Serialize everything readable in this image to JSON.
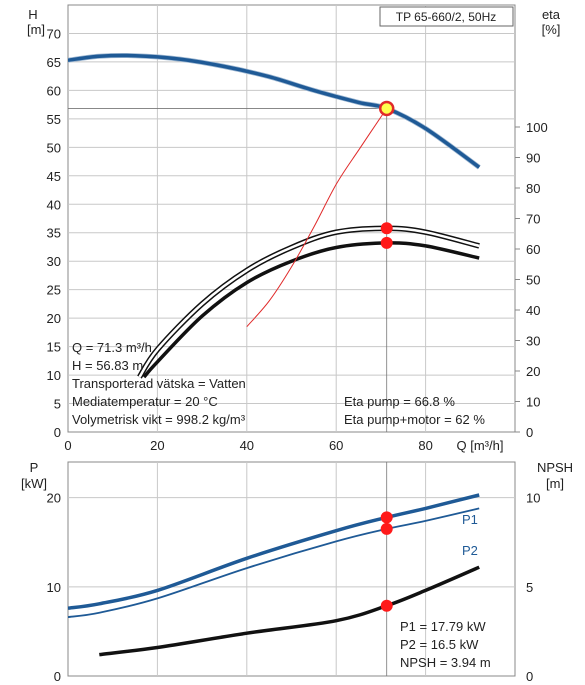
{
  "chart_data": [
    {
      "type": "line",
      "title": "TP 65-660/2, 50Hz",
      "xlabel": "Q [m³/h]",
      "x_ticks": [
        0,
        20,
        40,
        60,
        80
      ],
      "xlim": [
        0,
        100
      ],
      "left_axis": {
        "label_line1": "H",
        "label_line2": "[m]",
        "ylim": [
          0,
          75
        ],
        "ticks": [
          0,
          5,
          10,
          15,
          20,
          25,
          30,
          35,
          40,
          45,
          50,
          55,
          60,
          65,
          70
        ]
      },
      "right_axis": {
        "label_line1": "eta",
        "label_line2": "[%]",
        "ylim": [
          0,
          100
        ],
        "ticks": [
          0,
          10,
          20,
          30,
          40,
          50,
          60,
          70,
          80,
          90,
          100
        ]
      },
      "series": [
        {
          "key": "head",
          "color": "#1f5a96",
          "axis": "left",
          "x": [
            0,
            7,
            15,
            25,
            35,
            45,
            55,
            65,
            71.3,
            80,
            92
          ],
          "y": [
            65.3,
            66,
            66.1,
            65.5,
            64.2,
            62.4,
            60,
            57.9,
            56.83,
            53.3,
            46.5
          ]
        },
        {
          "key": "eta-pump",
          "color": "#111111",
          "axis": "right",
          "x": [
            16,
            20,
            30,
            40,
            50,
            60,
            71.3,
            80,
            92
          ],
          "y": [
            18,
            27,
            42,
            53,
            60.5,
            65.5,
            66.8,
            65.5,
            61
          ]
        },
        {
          "key": "eta-pump-motor",
          "color": "#111111",
          "axis": "right",
          "x": [
            17,
            20,
            30,
            40,
            50,
            60,
            71.3,
            80,
            92
          ],
          "y": [
            18,
            23,
            38,
            49,
            56,
            60.5,
            62,
            61,
            57
          ]
        },
        {
          "key": "system-curve",
          "color": "#e02a2a",
          "axis": "left",
          "x": [
            40,
            45,
            50,
            55,
            60,
            65,
            71.3
          ],
          "y": [
            18.5,
            23,
            29,
            36,
            43.5,
            49.5,
            56.83
          ]
        }
      ],
      "operating_point": {
        "Q": 71.3,
        "H": 56.83,
        "eta_pump": 66.8,
        "eta_pump_motor": 62
      },
      "info_lines": [
        "Q = 71.3 m³/h",
        "H = 56.83 m",
        "Transporterad vätska = Vatten",
        "Mediatemperatur = 20 °C",
        "Volymetrisk vikt = 998.2 kg/m³"
      ],
      "eta_lines": [
        "Eta pump = 66.8 %",
        "Eta pump+motor = 62 %"
      ],
      "grid": true
    },
    {
      "type": "line",
      "left_axis": {
        "label_line1": "P",
        "label_line2": "[kW]",
        "ylim": [
          0,
          24
        ],
        "ticks": [
          0,
          10,
          20
        ]
      },
      "right_axis": {
        "label_line1": "NPSH",
        "label_line2": "[m]",
        "ylim": [
          0,
          12
        ],
        "ticks": [
          0,
          5,
          10
        ]
      },
      "series": [
        {
          "key": "p1",
          "name": "P1",
          "color": "#1f5a96",
          "axis": "left",
          "x": [
            0,
            7,
            20,
            40,
            60,
            71.3,
            80,
            92
          ],
          "y": [
            7.6,
            8.1,
            9.6,
            13.2,
            16.3,
            17.79,
            18.8,
            20.3
          ]
        },
        {
          "key": "p2",
          "name": "P2",
          "color": "#1f5a96",
          "axis": "left",
          "x": [
            0,
            7,
            20,
            40,
            60,
            71.3,
            80,
            92
          ],
          "y": [
            6.6,
            7.1,
            8.7,
            12.1,
            15.1,
            16.5,
            17.4,
            18.8
          ]
        },
        {
          "key": "npsh",
          "color": "#111111",
          "axis": "right",
          "x": [
            7,
            20,
            40,
            60,
            71.3,
            80,
            92
          ],
          "y": [
            1.2,
            1.6,
            2.4,
            3.1,
            3.94,
            4.8,
            6.1
          ]
        }
      ],
      "operating_point": {
        "Q": 71.3,
        "P1": 17.79,
        "P2": 16.5,
        "NPSH": 3.94
      },
      "info_lines": [
        "P1 = 17.79 kW",
        "P2 = 16.5 kW",
        "NPSH = 3.94 m"
      ],
      "grid": true
    }
  ],
  "colors": {
    "head": "#1f5a96",
    "power": "#1f5a96",
    "marker": "#ff1a1a",
    "op_marker_fill": "#ffff4d",
    "system": "#e02a2a",
    "grid": "#c8c8c8"
  }
}
